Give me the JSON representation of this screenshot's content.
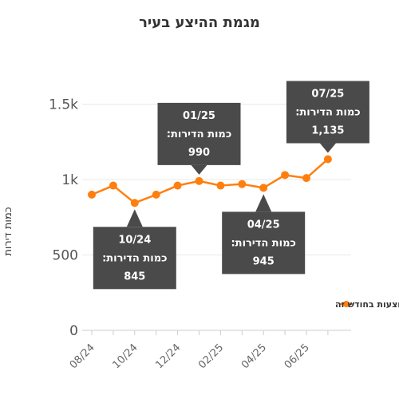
{
  "chart_data": {
    "type": "line",
    "title": "מגמת ההיצע בעיר",
    "ylabel": "כמות דירות",
    "xlabel": "",
    "ylim": [
      0,
      1600
    ],
    "yticks": [
      0,
      500,
      1000,
      1500
    ],
    "ytick_labels": [
      "0",
      "500",
      "1k",
      "1.5k"
    ],
    "x": [
      "08/24",
      "09/24",
      "10/24",
      "11/24",
      "12/24",
      "01/25",
      "02/25",
      "03/25",
      "04/25",
      "05/25",
      "06/25",
      "07/25"
    ],
    "xtick_labels": [
      "08/24",
      "10/24",
      "12/24",
      "02/25",
      "04/25",
      "06/25"
    ],
    "series": [
      {
        "name": "כמות הדירות המוצעות בחודש זה",
        "color": "#ff7f0e",
        "values": [
          900,
          960,
          845,
          900,
          960,
          990,
          960,
          970,
          945,
          1030,
          1010,
          1135
        ]
      }
    ],
    "grid": true,
    "legend_position": "right",
    "annotations": [
      {
        "date": "01/25",
        "label": "כמות הדירות:",
        "value": "990",
        "placement": "above"
      },
      {
        "date": "07/25",
        "label": "כמות הדירות:",
        "value": "1,135",
        "placement": "above"
      },
      {
        "date": "10/24",
        "label": "כמות הדירות:",
        "value": "845",
        "placement": "below"
      },
      {
        "date": "04/25",
        "label": "כמות הדירות:",
        "value": "945",
        "placement": "below"
      }
    ]
  }
}
